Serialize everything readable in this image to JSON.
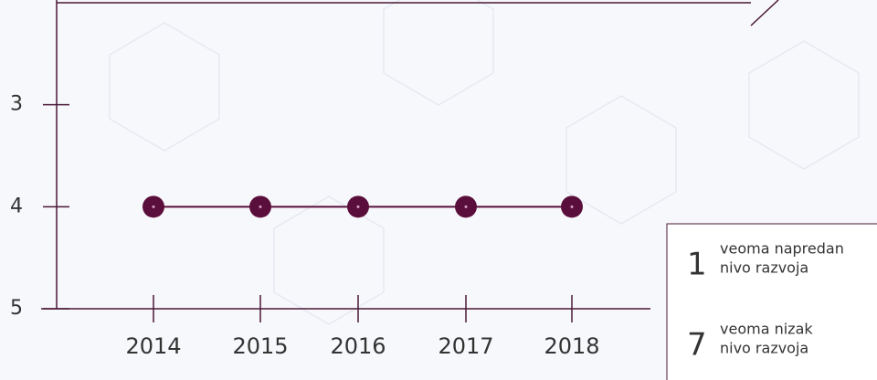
{
  "chart_data": {
    "type": "line",
    "categories": [
      "2014",
      "2015",
      "2016",
      "2017",
      "2018"
    ],
    "series": [
      {
        "color": "#5a0e3b",
        "values": [
          4,
          4,
          4,
          4,
          4
        ]
      }
    ],
    "ylim": [
      5,
      2
    ],
    "yticks": [
      3,
      4,
      5
    ],
    "scale_notes": [
      {
        "number": 1,
        "lines": [
          "veoma napredan",
          "nivo razvoja"
        ]
      },
      {
        "number": 7,
        "lines": [
          "veoma nizak",
          "nivo razvoja"
        ]
      }
    ]
  }
}
